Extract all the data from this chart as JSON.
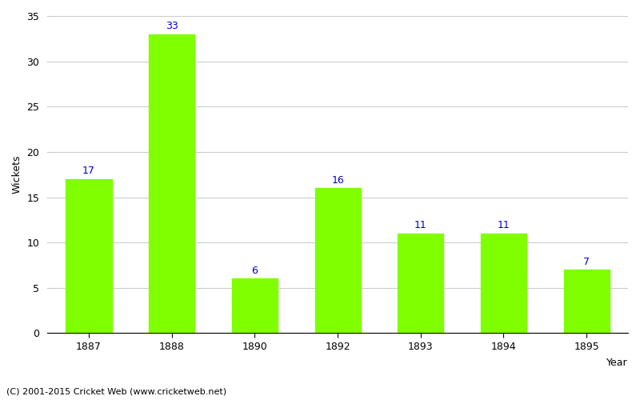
{
  "years": [
    "1887",
    "1888",
    "1890",
    "1892",
    "1893",
    "1894",
    "1895"
  ],
  "values": [
    17,
    33,
    6,
    16,
    11,
    11,
    7
  ],
  "bar_color": "#7FFF00",
  "bar_edge_color": "#7FFF00",
  "label_color": "#0000CC",
  "xlabel": "Year",
  "ylabel": "Wickets",
  "ylim": [
    0,
    35
  ],
  "yticks": [
    0,
    5,
    10,
    15,
    20,
    25,
    30,
    35
  ],
  "footnote": "(C) 2001-2015 Cricket Web (www.cricketweb.net)",
  "background_color": "#ffffff",
  "grid_color": "#cccccc",
  "label_fontsize": 9,
  "axis_label_fontsize": 9,
  "footnote_fontsize": 8,
  "bar_width": 0.55
}
